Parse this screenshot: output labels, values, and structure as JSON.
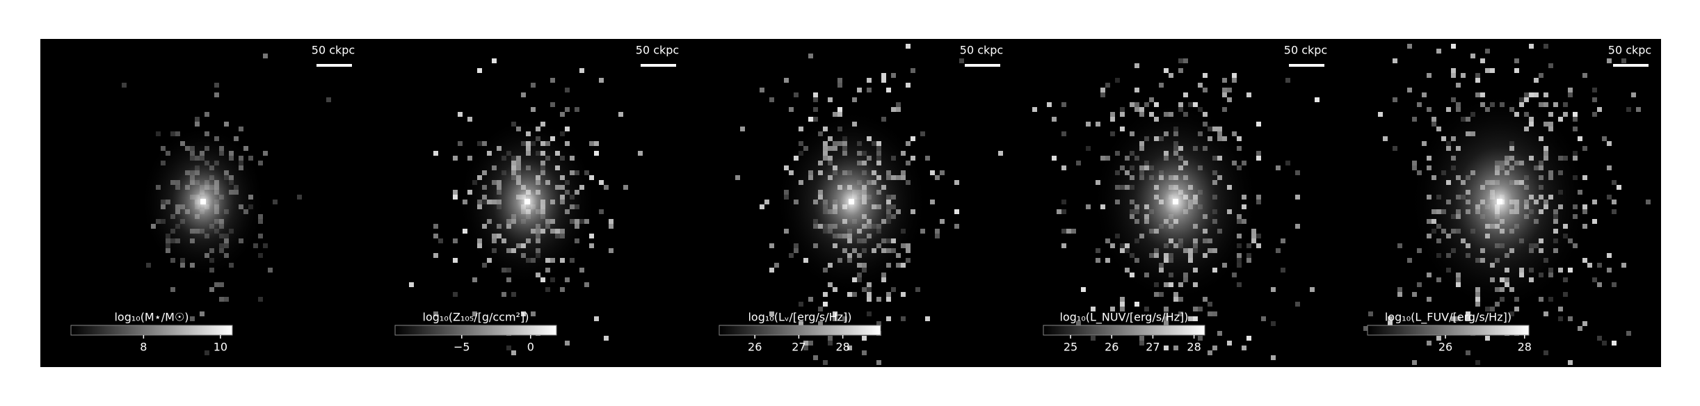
{
  "chart_data": [
    {
      "type": "image",
      "scale_label": "50 ckpc",
      "colorbar_label": "log₁₀(M⋆/M☉)",
      "clim": [
        6.11,
        10.31
      ],
      "cticks": [
        8,
        10
      ]
    },
    {
      "type": "image",
      "scale_label": "50 ckpc",
      "colorbar_label": "log₁₀(Z₁₀₅/[g/ccm²])",
      "clim": [
        -9.84,
        1.88
      ],
      "cticks": [
        {
          "value": -5,
          "label": "−5"
        },
        0
      ]
    },
    {
      "type": "image",
      "scale_label": "50 ckpc",
      "colorbar_label": "log₁₀(Lᵥ/[erg/s/Hz])",
      "clim": [
        25.19,
        28.86
      ],
      "cticks": [
        26,
        27,
        28
      ]
    },
    {
      "type": "image",
      "scale_label": "50 ckpc",
      "colorbar_label": "log₁₀(L_NUV/[erg/s/Hz])",
      "clim": [
        24.34,
        28.26
      ],
      "cticks": [
        25,
        26,
        27,
        28
      ]
    },
    {
      "type": "image",
      "scale_label": "50 ckpc",
      "colorbar_label": "log₁₀(L_FUV/[erg/s/Hz])",
      "clim": [
        24.03,
        28.11
      ],
      "cticks": [
        26,
        28
      ]
    }
  ]
}
